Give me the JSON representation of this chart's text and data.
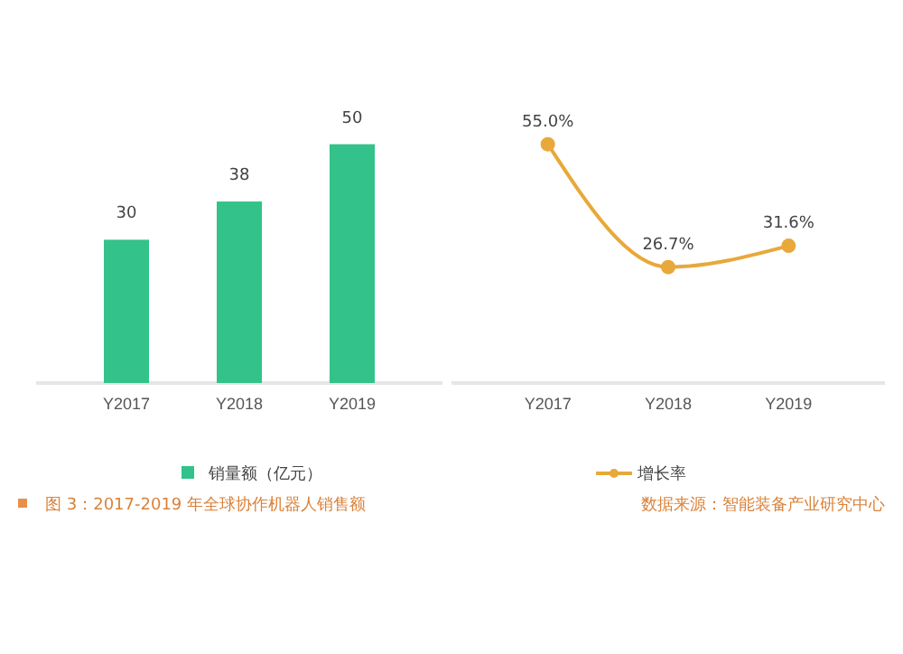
{
  "chart_data": [
    {
      "type": "bar",
      "categories": [
        "Y2017",
        "Y2018",
        "Y2019"
      ],
      "series": [
        {
          "name": "销量额（亿元）",
          "color": "#33c28a",
          "values": [
            30,
            38,
            50
          ]
        }
      ],
      "data_labels": true,
      "legend": "bottom",
      "tick_labels": "x",
      "annotations": [
        "图 3：2017-2019 年全球协作机器人销售额"
      ]
    },
    {
      "type": "line",
      "categories": [
        "Y2017",
        "Y2018",
        "Y2019"
      ],
      "series": [
        {
          "name": "增长率",
          "color": "#e8a83a",
          "values": [
            55.0,
            26.7,
            31.6
          ],
          "value_labels": [
            "55.0%",
            "26.7%",
            "31.6%"
          ]
        }
      ],
      "marker": "circle",
      "legend": "bottom",
      "tick_labels": "x",
      "annotations": [
        "数据来源：智能装备产业研究中心"
      ]
    }
  ]
}
